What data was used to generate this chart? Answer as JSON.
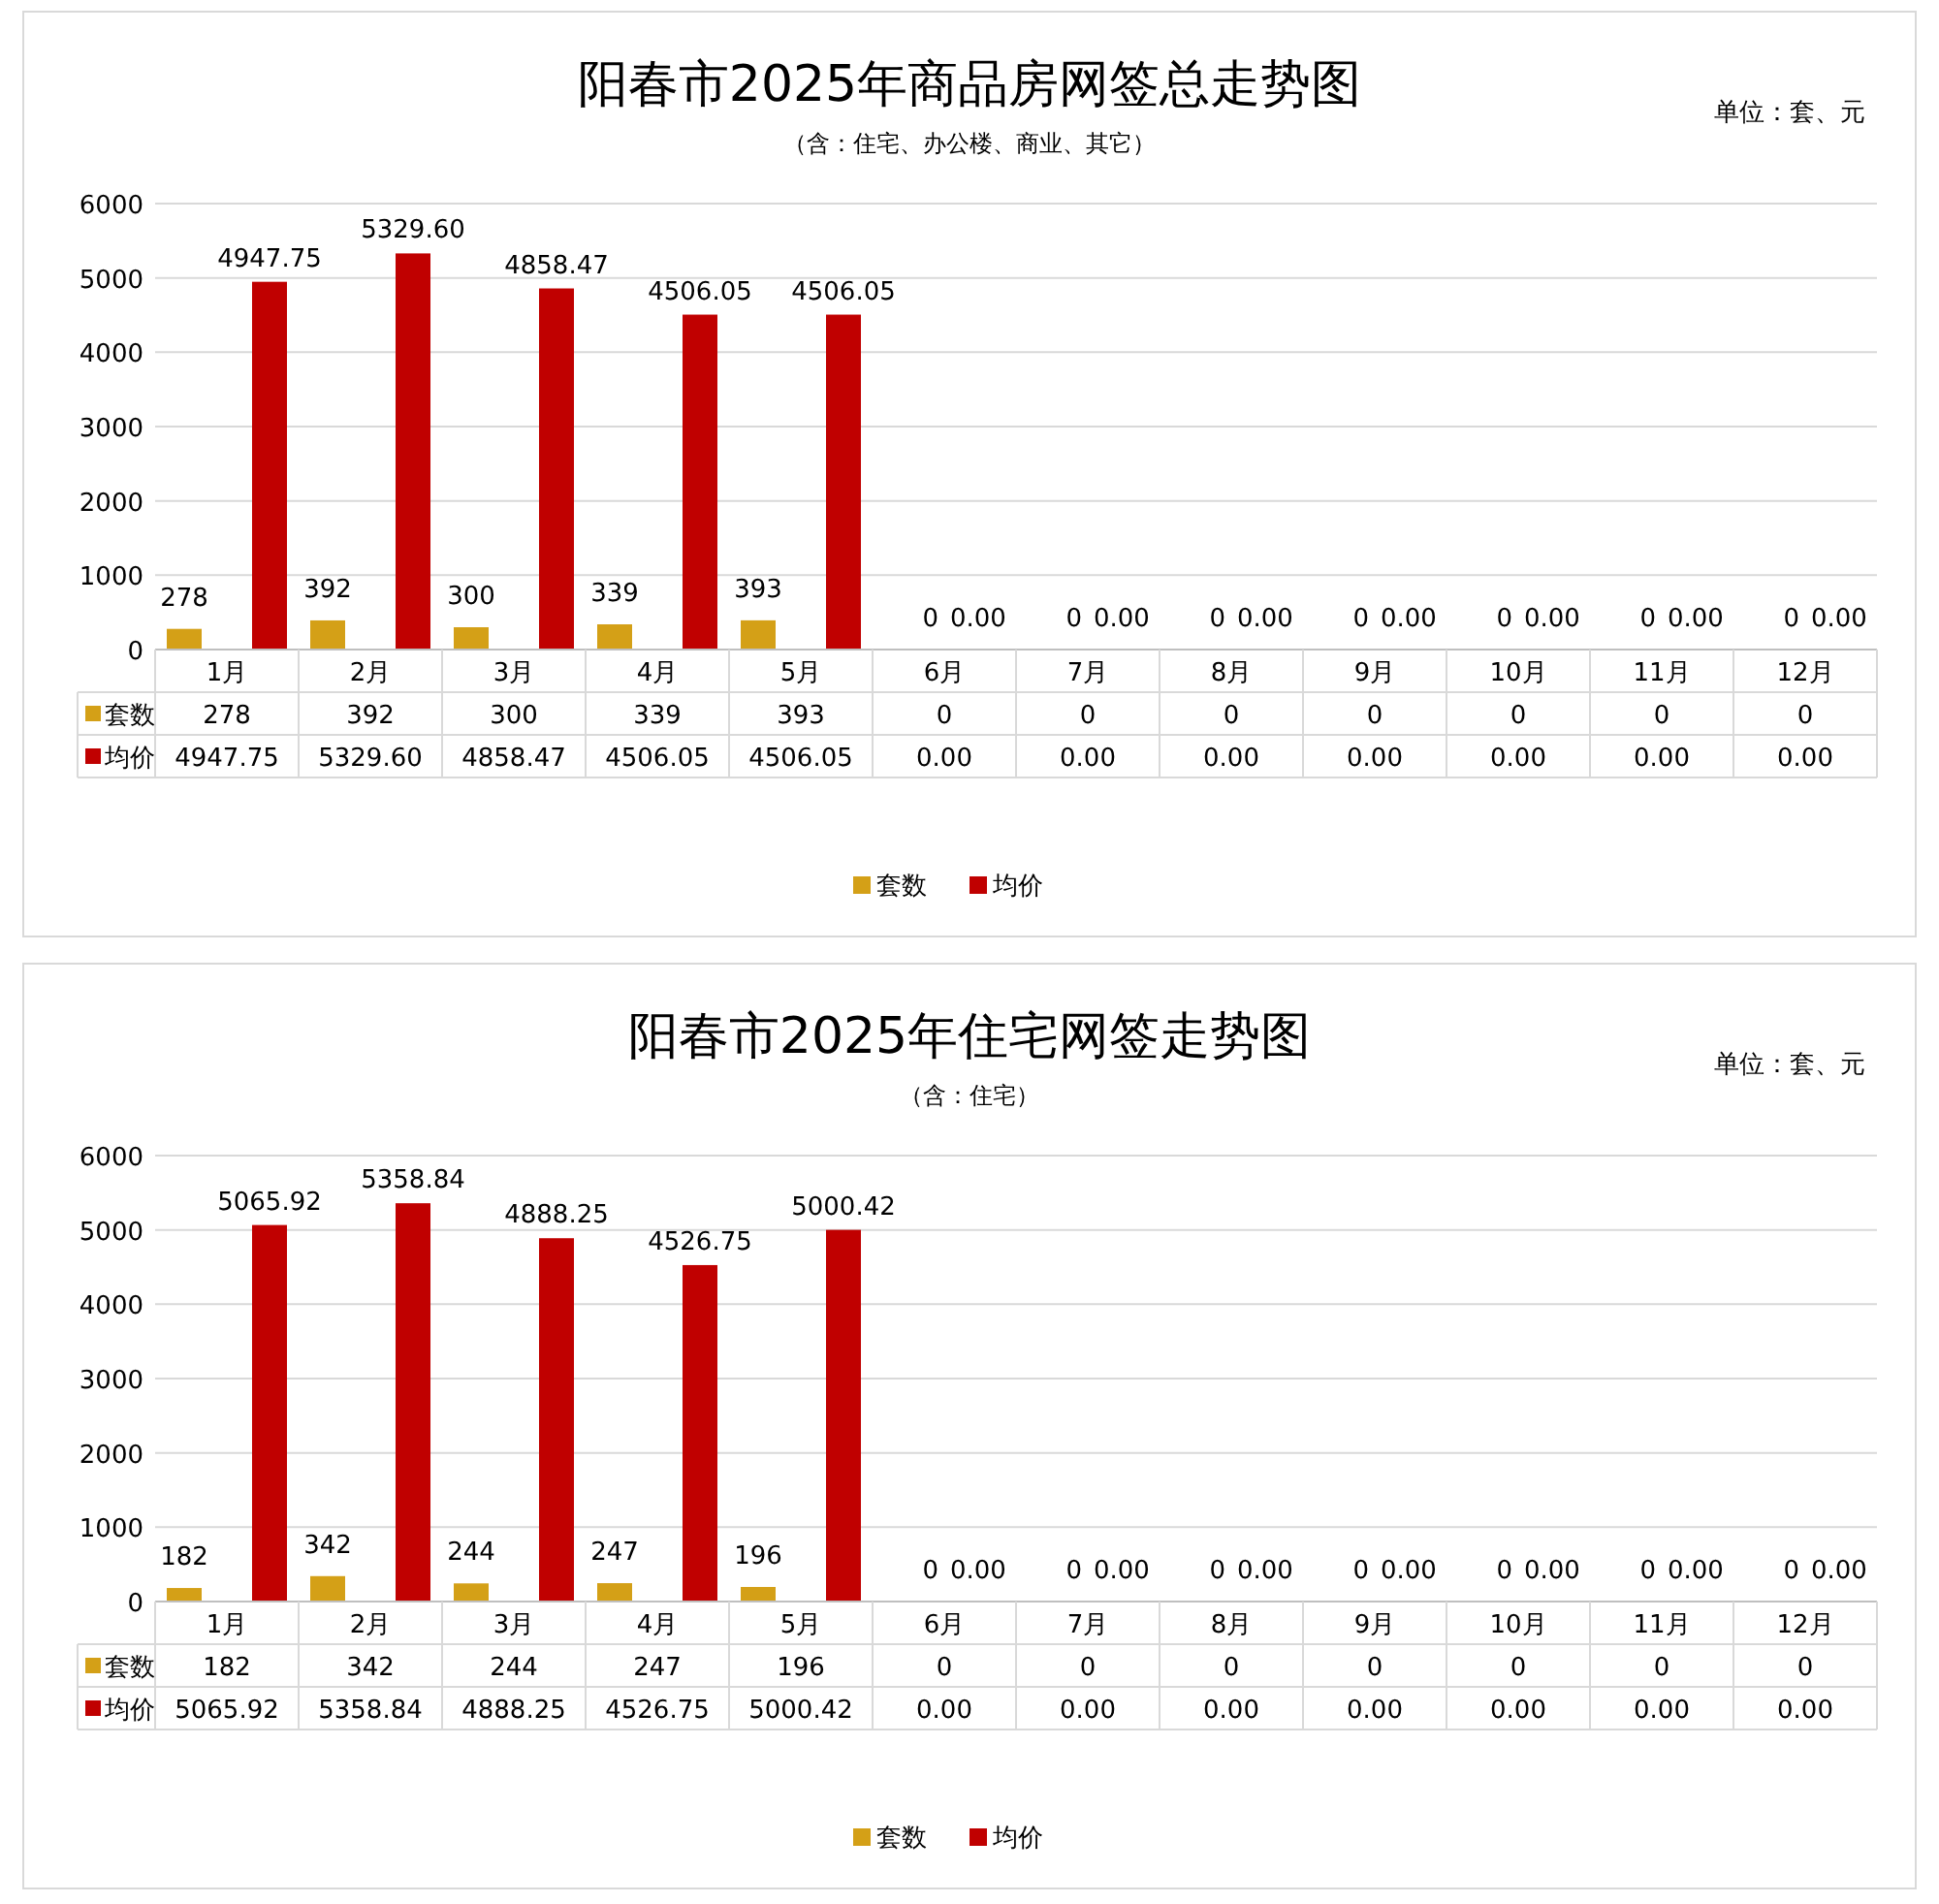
{
  "chart_data": [
    {
      "type": "bar",
      "title": "阳春市2025年商品房网签总走势图",
      "subtitle": "（含：住宅、办公楼、商业、其它）",
      "annotations": [
        "单位：套、元"
      ],
      "categories": [
        "1月",
        "2月",
        "3月",
        "4月",
        "5月",
        "6月",
        "7月",
        "8月",
        "9月",
        "10月",
        "11月",
        "12月"
      ],
      "ylim": [
        0,
        6000
      ],
      "yticks": [
        0,
        1000,
        2000,
        3000,
        4000,
        5000,
        6000
      ],
      "grid": "y",
      "legend": "bottom",
      "series": [
        {
          "name": "套数",
          "color": "#d4a017",
          "values": [
            278,
            392,
            300,
            339,
            393,
            0,
            0,
            0,
            0,
            0,
            0,
            0
          ],
          "value_labels": [
            "278",
            "392",
            "300",
            "339",
            "393",
            "0",
            "0",
            "0",
            "0",
            "0",
            "0",
            "0"
          ]
        },
        {
          "name": "均价",
          "color": "#c00000",
          "values": [
            4947.75,
            5329.6,
            4858.47,
            4506.05,
            4506.05,
            0,
            0,
            0,
            0,
            0,
            0,
            0
          ],
          "value_labels": [
            "4947.75",
            "5329.60",
            "4858.47",
            "4506.05",
            "4506.05",
            "0.00",
            "0.00",
            "0.00",
            "0.00",
            "0.00",
            "0.00",
            "0.00"
          ]
        }
      ]
    },
    {
      "type": "bar",
      "title": "阳春市2025年住宅网签走势图",
      "subtitle": "（含：住宅）",
      "annotations": [
        "单位：套、元"
      ],
      "categories": [
        "1月",
        "2月",
        "3月",
        "4月",
        "5月",
        "6月",
        "7月",
        "8月",
        "9月",
        "10月",
        "11月",
        "12月"
      ],
      "ylim": [
        0,
        6000
      ],
      "yticks": [
        0,
        1000,
        2000,
        3000,
        4000,
        5000,
        6000
      ],
      "grid": "y",
      "legend": "bottom",
      "series": [
        {
          "name": "套数",
          "color": "#d4a017",
          "values": [
            182,
            342,
            244,
            247,
            196,
            0,
            0,
            0,
            0,
            0,
            0,
            0
          ],
          "value_labels": [
            "182",
            "342",
            "244",
            "247",
            "196",
            "0",
            "0",
            "0",
            "0",
            "0",
            "0",
            "0"
          ]
        },
        {
          "name": "均价",
          "color": "#c00000",
          "values": [
            5065.92,
            5358.84,
            4888.25,
            4526.75,
            5000.42,
            0,
            0,
            0,
            0,
            0,
            0,
            0
          ],
          "value_labels": [
            "5065.92",
            "5358.84",
            "4888.25",
            "4526.75",
            "5000.42",
            "0.00",
            "0.00",
            "0.00",
            "0.00",
            "0.00",
            "0.00",
            "0.00"
          ]
        }
      ]
    }
  ]
}
